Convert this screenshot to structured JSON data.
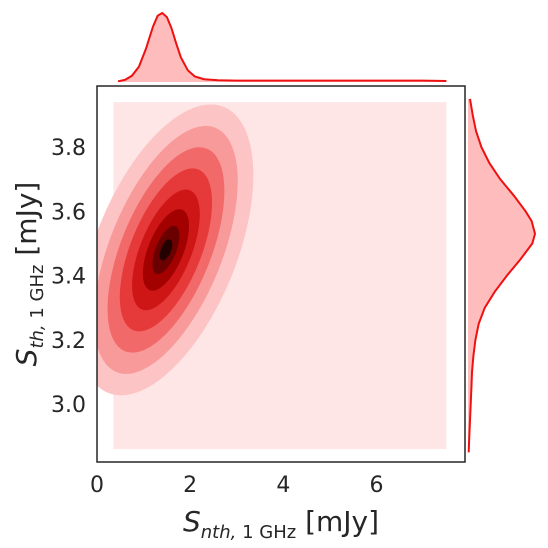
{
  "chart_data": {
    "type": "joint-kde",
    "title": "",
    "xlabel": {
      "main": "S",
      "sub_italic": "nth,",
      "sub_upright": " 1 GHz",
      "unit": " [mJy]"
    },
    "ylabel": {
      "main": "S",
      "sub_italic": "th,",
      "sub_upright": " 1 GHz",
      "unit": " [mJy]"
    },
    "xlim": [
      0,
      7.9
    ],
    "ylim": [
      2.82,
      3.99
    ],
    "xticks": [
      0,
      2,
      4,
      6
    ],
    "xtick_labels": [
      "0",
      "2",
      "4",
      "6"
    ],
    "yticks": [
      3.0,
      3.2,
      3.4,
      3.6,
      3.8
    ],
    "ytick_labels": [
      "3.0",
      "3.2",
      "3.4",
      "3.6",
      "3.8"
    ],
    "grid": false,
    "colors": {
      "kde_line": "#ee1111",
      "kde_fill": "#ffbcbc",
      "background_contour": "#fee6e6",
      "levels": [
        "#fcc4c4",
        "#f99a9a",
        "#f26969",
        "#e63a3a",
        "#cf1616",
        "#a30000",
        "#6b0000",
        "#240000"
      ]
    },
    "joint_kde": {
      "support_x": [
        0.35,
        7.5
      ],
      "support_y": [
        2.86,
        3.94
      ],
      "center": [
        1.48,
        3.48
      ],
      "levels": [
        {
          "semi_major": 0.48,
          "semi_minor": 0.22
        },
        {
          "semi_major": 0.41,
          "semi_minor": 0.175
        },
        {
          "semi_major": 0.34,
          "semi_minor": 0.14
        },
        {
          "semi_major": 0.27,
          "semi_minor": 0.11
        },
        {
          "semi_major": 0.2,
          "semi_minor": 0.08
        },
        {
          "semi_major": 0.135,
          "semi_minor": 0.055
        },
        {
          "semi_major": 0.08,
          "semi_minor": 0.032
        },
        {
          "semi_major": 0.035,
          "semi_minor": 0.016
        }
      ]
    },
    "marginal_x_density": [
      [
        0.45,
        0.01
      ],
      [
        0.6,
        0.03
      ],
      [
        0.75,
        0.09
      ],
      [
        0.9,
        0.22
      ],
      [
        1.05,
        0.48
      ],
      [
        1.2,
        0.8
      ],
      [
        1.3,
        0.96
      ],
      [
        1.4,
        1.0
      ],
      [
        1.5,
        0.94
      ],
      [
        1.6,
        0.78
      ],
      [
        1.7,
        0.56
      ],
      [
        1.8,
        0.36
      ],
      [
        1.95,
        0.17
      ],
      [
        2.1,
        0.08
      ],
      [
        2.3,
        0.04
      ],
      [
        2.6,
        0.025
      ],
      [
        3.0,
        0.02
      ],
      [
        4.0,
        0.02
      ],
      [
        5.0,
        0.02
      ],
      [
        6.0,
        0.02
      ],
      [
        7.0,
        0.02
      ],
      [
        7.5,
        0.015
      ]
    ],
    "marginal_y_density": [
      [
        2.85,
        0.01
      ],
      [
        2.9,
        0.02
      ],
      [
        2.95,
        0.03
      ],
      [
        3.0,
        0.04
      ],
      [
        3.05,
        0.05
      ],
      [
        3.1,
        0.06
      ],
      [
        3.15,
        0.08
      ],
      [
        3.2,
        0.11
      ],
      [
        3.25,
        0.16
      ],
      [
        3.3,
        0.25
      ],
      [
        3.35,
        0.4
      ],
      [
        3.4,
        0.58
      ],
      [
        3.45,
        0.78
      ],
      [
        3.5,
        0.96
      ],
      [
        3.53,
        1.0
      ],
      [
        3.57,
        0.95
      ],
      [
        3.6,
        0.86
      ],
      [
        3.65,
        0.68
      ],
      [
        3.7,
        0.48
      ],
      [
        3.75,
        0.32
      ],
      [
        3.8,
        0.2
      ],
      [
        3.85,
        0.12
      ],
      [
        3.9,
        0.07
      ],
      [
        3.95,
        0.03
      ]
    ]
  }
}
